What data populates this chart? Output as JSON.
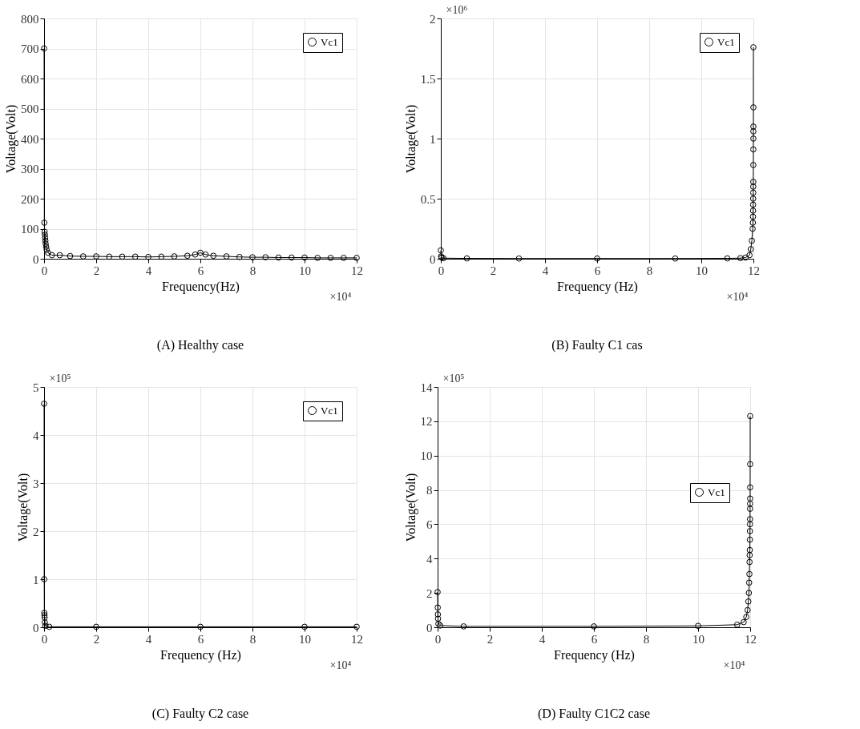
{
  "chart_data": [
    {
      "type": "line",
      "title": "(A) Healthy case",
      "xlabel": "Frequency(Hz)",
      "ylabel": "Voltage(Volt)",
      "annotations": [
        "×10⁴"
      ],
      "series": [
        {
          "name": "Vc1",
          "color": "#000000",
          "x": [
            0,
            0.01,
            0.02,
            0.03,
            0.04,
            0.05,
            0.06,
            0.08,
            0.1,
            0.15,
            0.3,
            0.6,
            1,
            1.5,
            2,
            2.5,
            3,
            3.5,
            4,
            4.5,
            5,
            5.5,
            5.8,
            6,
            6.2,
            6.5,
            7,
            7.5,
            8,
            8.5,
            9,
            9.5,
            10,
            10.5,
            11,
            11.5,
            12
          ],
          "values": [
            700,
            120,
            90,
            80,
            70,
            60,
            50,
            40,
            30,
            20,
            12,
            12,
            9,
            8,
            8,
            7,
            7,
            7,
            6,
            7,
            8,
            10,
            14,
            20,
            14,
            10,
            8,
            6,
            5,
            5,
            4,
            4,
            4,
            3,
            3,
            3,
            3
          ]
        }
      ],
      "xlim": [
        0,
        12
      ],
      "xticks": [
        0,
        2,
        4,
        6,
        8,
        10,
        12
      ],
      "ylim": [
        0,
        800
      ],
      "yticks": [
        0,
        100,
        200,
        300,
        400,
        500,
        600,
        700,
        800
      ],
      "grid": true,
      "legend": "top right",
      "marker": "circle",
      "line_style": "solid"
    },
    {
      "type": "line",
      "title": "(B) Faulty C1 cas",
      "xlabel": "Frequency (Hz)",
      "ylabel": "Voltage(Volt)",
      "annotations": [
        "×10⁴",
        "×10⁶"
      ],
      "series": [
        {
          "name": "Vc1",
          "color": "#000000",
          "x": [
            0,
            0.01,
            0.03,
            0.1,
            1,
            3,
            6,
            9,
            11,
            11.5,
            11.7,
            11.85,
            11.9,
            11.94,
            11.97,
            11.98,
            11.985,
            11.988,
            11.99,
            11.992,
            11.994,
            11.995,
            11.996,
            11.997,
            11.9975,
            11.998,
            11.9985,
            11.999,
            11.9995,
            12
          ],
          "values": [
            0.07,
            0.02,
            0.01,
            0.005,
            0.003,
            0.002,
            0.002,
            0.002,
            0.003,
            0.005,
            0.01,
            0.03,
            0.08,
            0.15,
            0.25,
            0.3,
            0.35,
            0.4,
            0.45,
            0.5,
            0.55,
            0.6,
            0.64,
            0.78,
            0.91,
            1,
            1.06,
            1.1,
            1.26,
            1.76
          ]
        }
      ],
      "xlim": [
        0,
        12
      ],
      "xticks": [
        0,
        2,
        4,
        6,
        8,
        10,
        12
      ],
      "ylim": [
        0,
        2
      ],
      "yticks": [
        0,
        0.5,
        1,
        1.5,
        2
      ],
      "grid": true,
      "legend": "top right",
      "marker": "circle",
      "line_style": "solid"
    },
    {
      "type": "line",
      "title": "(C) Faulty C2 case",
      "xlabel": "Frequency (Hz)",
      "ylabel": "Voltage(Volt)",
      "annotations": [
        "×10⁴",
        "×10⁵"
      ],
      "series": [
        {
          "name": "Vc1",
          "color": "#000000",
          "x": [
            0,
            0.005,
            0.01,
            0.015,
            0.02,
            0.03,
            0.05,
            0.2,
            2,
            6,
            10,
            12
          ],
          "values": [
            4.65,
            1,
            0.3,
            0.25,
            0.2,
            0.1,
            0.03,
            0.01,
            0.01,
            0.01,
            0.01,
            0.01
          ]
        }
      ],
      "xlim": [
        0,
        12
      ],
      "xticks": [
        0,
        2,
        4,
        6,
        8,
        10,
        12
      ],
      "ylim": [
        0,
        5
      ],
      "yticks": [
        0,
        1,
        2,
        3,
        4,
        5
      ],
      "grid": true,
      "legend": "top right",
      "marker": "circle",
      "line_style": "solid"
    },
    {
      "type": "line",
      "title": "(D) Faulty C1C2 case",
      "xlabel": "Frequency (Hz)",
      "ylabel": "Voltage(Volt)",
      "annotations": [
        "×10⁴",
        "×10⁵"
      ],
      "series": [
        {
          "name": "Vc1",
          "color": "#000000",
          "x": [
            0,
            0.005,
            0.01,
            0.015,
            0.03,
            0.1,
            1,
            6,
            10,
            11.5,
            11.75,
            11.85,
            11.9,
            11.93,
            11.95,
            11.96,
            11.97,
            11.975,
            11.98,
            11.985,
            11.988,
            11.99,
            11.992,
            11.994,
            11.995,
            11.996,
            11.997,
            11.998,
            11.999,
            12
          ],
          "values": [
            2.05,
            1.15,
            0.75,
            0.5,
            0.2,
            0.1,
            0.05,
            0.05,
            0.08,
            0.15,
            0.3,
            0.6,
            1,
            1.5,
            2,
            2.6,
            3.1,
            3.8,
            4.2,
            4.5,
            5.1,
            5.6,
            6,
            6.3,
            6.9,
            7.2,
            7.5,
            8.15,
            9.5,
            12.3
          ]
        }
      ],
      "xlim": [
        0,
        12
      ],
      "xticks": [
        0,
        2,
        4,
        6,
        8,
        10,
        12
      ],
      "ylim": [
        0,
        14
      ],
      "yticks": [
        0,
        2,
        4,
        6,
        8,
        10,
        12,
        14
      ],
      "grid": true,
      "legend": "right",
      "marker": "circle",
      "line_style": "solid"
    }
  ]
}
